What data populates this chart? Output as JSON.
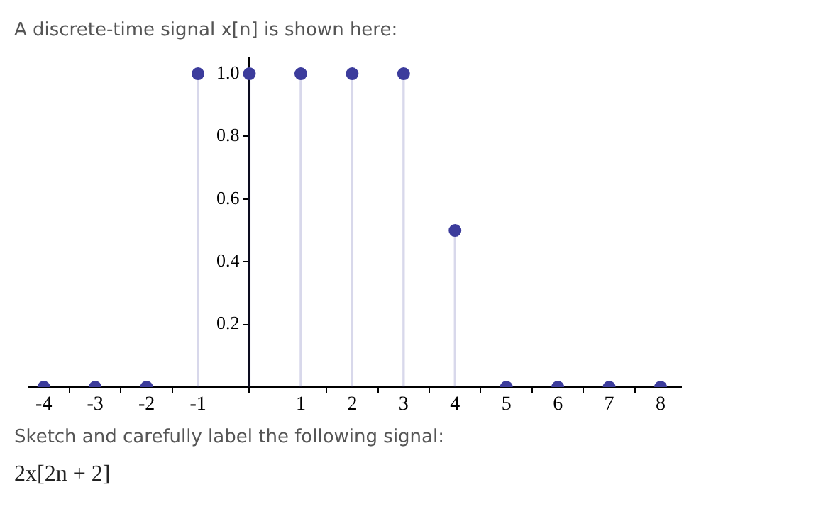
{
  "chart_data": {
    "type": "lollipop",
    "title": "A discrete-time signal x[n] is shown here:",
    "x": [
      -4,
      -3,
      -2,
      -1,
      0,
      1,
      2,
      3,
      4,
      5,
      6,
      7,
      8
    ],
    "values": [
      0,
      0,
      0,
      1,
      1,
      1,
      1,
      1,
      0.5,
      0,
      0,
      0,
      0
    ],
    "color": "#3c3c9c",
    "xlim": [
      -4.3,
      8.4
    ],
    "xticks": [
      -4,
      -3,
      -2,
      -1,
      1,
      2,
      3,
      4,
      5,
      6,
      7,
      8
    ],
    "ylim": [
      0,
      1.05
    ],
    "yticks": [
      {
        "value": 0.2,
        "label": "0.2"
      },
      {
        "value": 0.4,
        "label": "0.4"
      },
      {
        "value": 0.6,
        "label": "0.6"
      },
      {
        "value": 0.8,
        "label": "0.8"
      },
      {
        "value": 1,
        "label": "1.0"
      }
    ],
    "grid": false,
    "marker": "circle",
    "annotations": [
      "Sketch and carefully label the following signal:",
      "2x[2n + 2]"
    ]
  }
}
